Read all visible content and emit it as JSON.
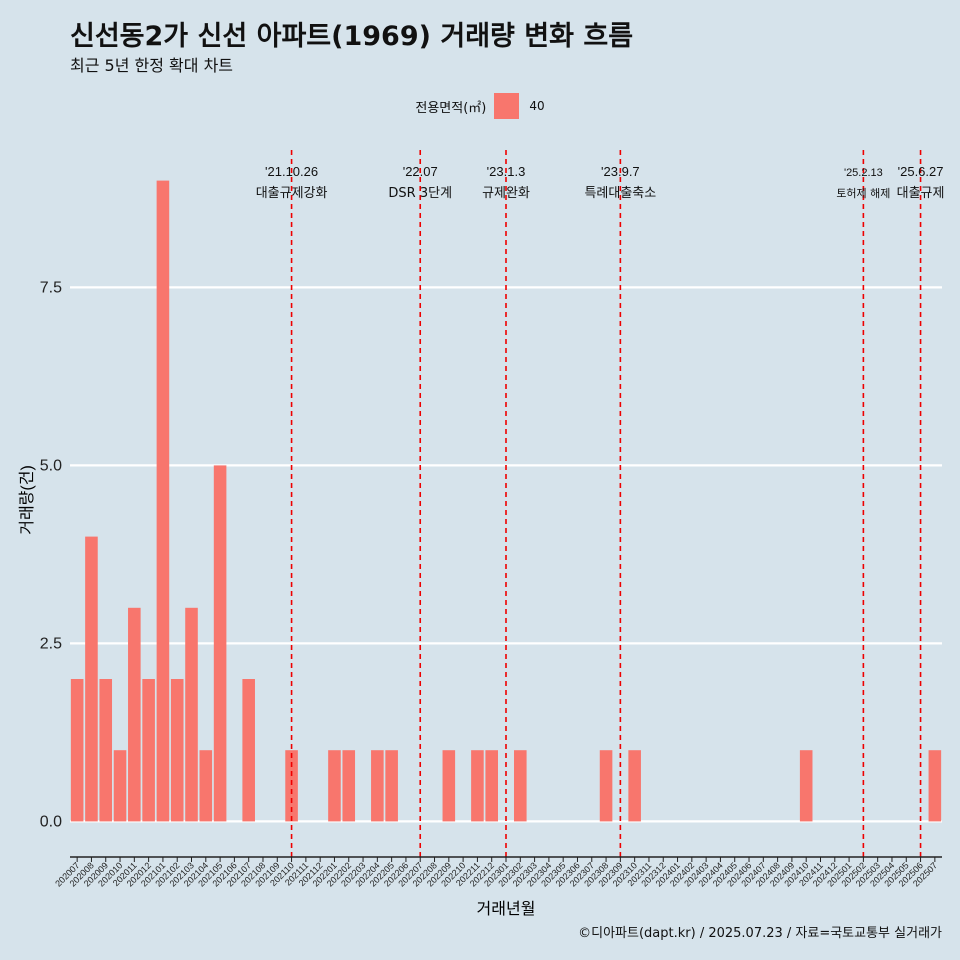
{
  "header": {
    "title": "신선동2가 신선 아파트(1969) 거래량 변화 흐름",
    "subtitle": "최근 5년 한정 확대 차트"
  },
  "legend": {
    "title": "전용면적(㎡)",
    "items": [
      {
        "label": "40",
        "color": "#f8766d"
      }
    ]
  },
  "caption": "©디아파트(dapt.kr) / 2025.07.23 / 자료=국토교통부 실거래가",
  "colors": {
    "background": "#d6e3eb",
    "bar": "#f8766d",
    "event_line": "#ee0000",
    "grid": "#ffffff"
  },
  "chart_data": {
    "type": "bar",
    "xlabel": "거래년월",
    "ylabel": "거래량(건)",
    "ylim": [
      -0.5,
      9.5
    ],
    "yticks": [
      0.0,
      2.5,
      5.0,
      7.5
    ],
    "ytick_labels": [
      "0.0",
      "2.5",
      "5.0",
      "7.5"
    ],
    "grid": true,
    "legend_position": "top",
    "categories": [
      "202007",
      "202008",
      "202009",
      "202010",
      "202011",
      "202012",
      "202101",
      "202102",
      "202103",
      "202104",
      "202105",
      "202106",
      "202107",
      "202108",
      "202109",
      "202110",
      "202111",
      "202112",
      "202201",
      "202202",
      "202203",
      "202204",
      "202205",
      "202206",
      "202207",
      "202208",
      "202209",
      "202210",
      "202211",
      "202212",
      "202301",
      "202302",
      "202303",
      "202304",
      "202305",
      "202306",
      "202307",
      "202308",
      "202309",
      "202310",
      "202311",
      "202312",
      "202401",
      "202402",
      "202403",
      "202404",
      "202405",
      "202406",
      "202407",
      "202408",
      "202409",
      "202410",
      "202411",
      "202412",
      "202501",
      "202502",
      "202503",
      "202504",
      "202505",
      "202506",
      "202507"
    ],
    "series": [
      {
        "name": "40",
        "values": [
          2,
          4,
          2,
          1,
          3,
          2,
          9,
          2,
          3,
          1,
          5,
          0,
          2,
          0,
          0,
          1,
          0,
          0,
          1,
          1,
          0,
          1,
          1,
          0,
          0,
          0,
          1,
          0,
          1,
          1,
          0,
          1,
          0,
          0,
          0,
          0,
          0,
          1,
          0,
          1,
          0,
          0,
          0,
          0,
          0,
          0,
          0,
          0,
          0,
          0,
          0,
          1,
          0,
          0,
          0,
          0,
          0,
          0,
          0,
          0,
          1
        ]
      }
    ],
    "annotations": [
      {
        "category": "202110",
        "date": "'21.10.26",
        "label": "대출규제강화"
      },
      {
        "category": "202207",
        "date": "'22.07",
        "label": "DSR 3단계"
      },
      {
        "category": "202301",
        "date": "'23.1.3",
        "label": "규제완화"
      },
      {
        "category": "202309",
        "date": "'23.9.7",
        "label": "특례대출축소"
      },
      {
        "category": "202502",
        "date": "'25.2.13",
        "label": "토허제 해제"
      },
      {
        "category": "202506",
        "date": "'25.6.27",
        "label": "대출규제"
      }
    ]
  }
}
